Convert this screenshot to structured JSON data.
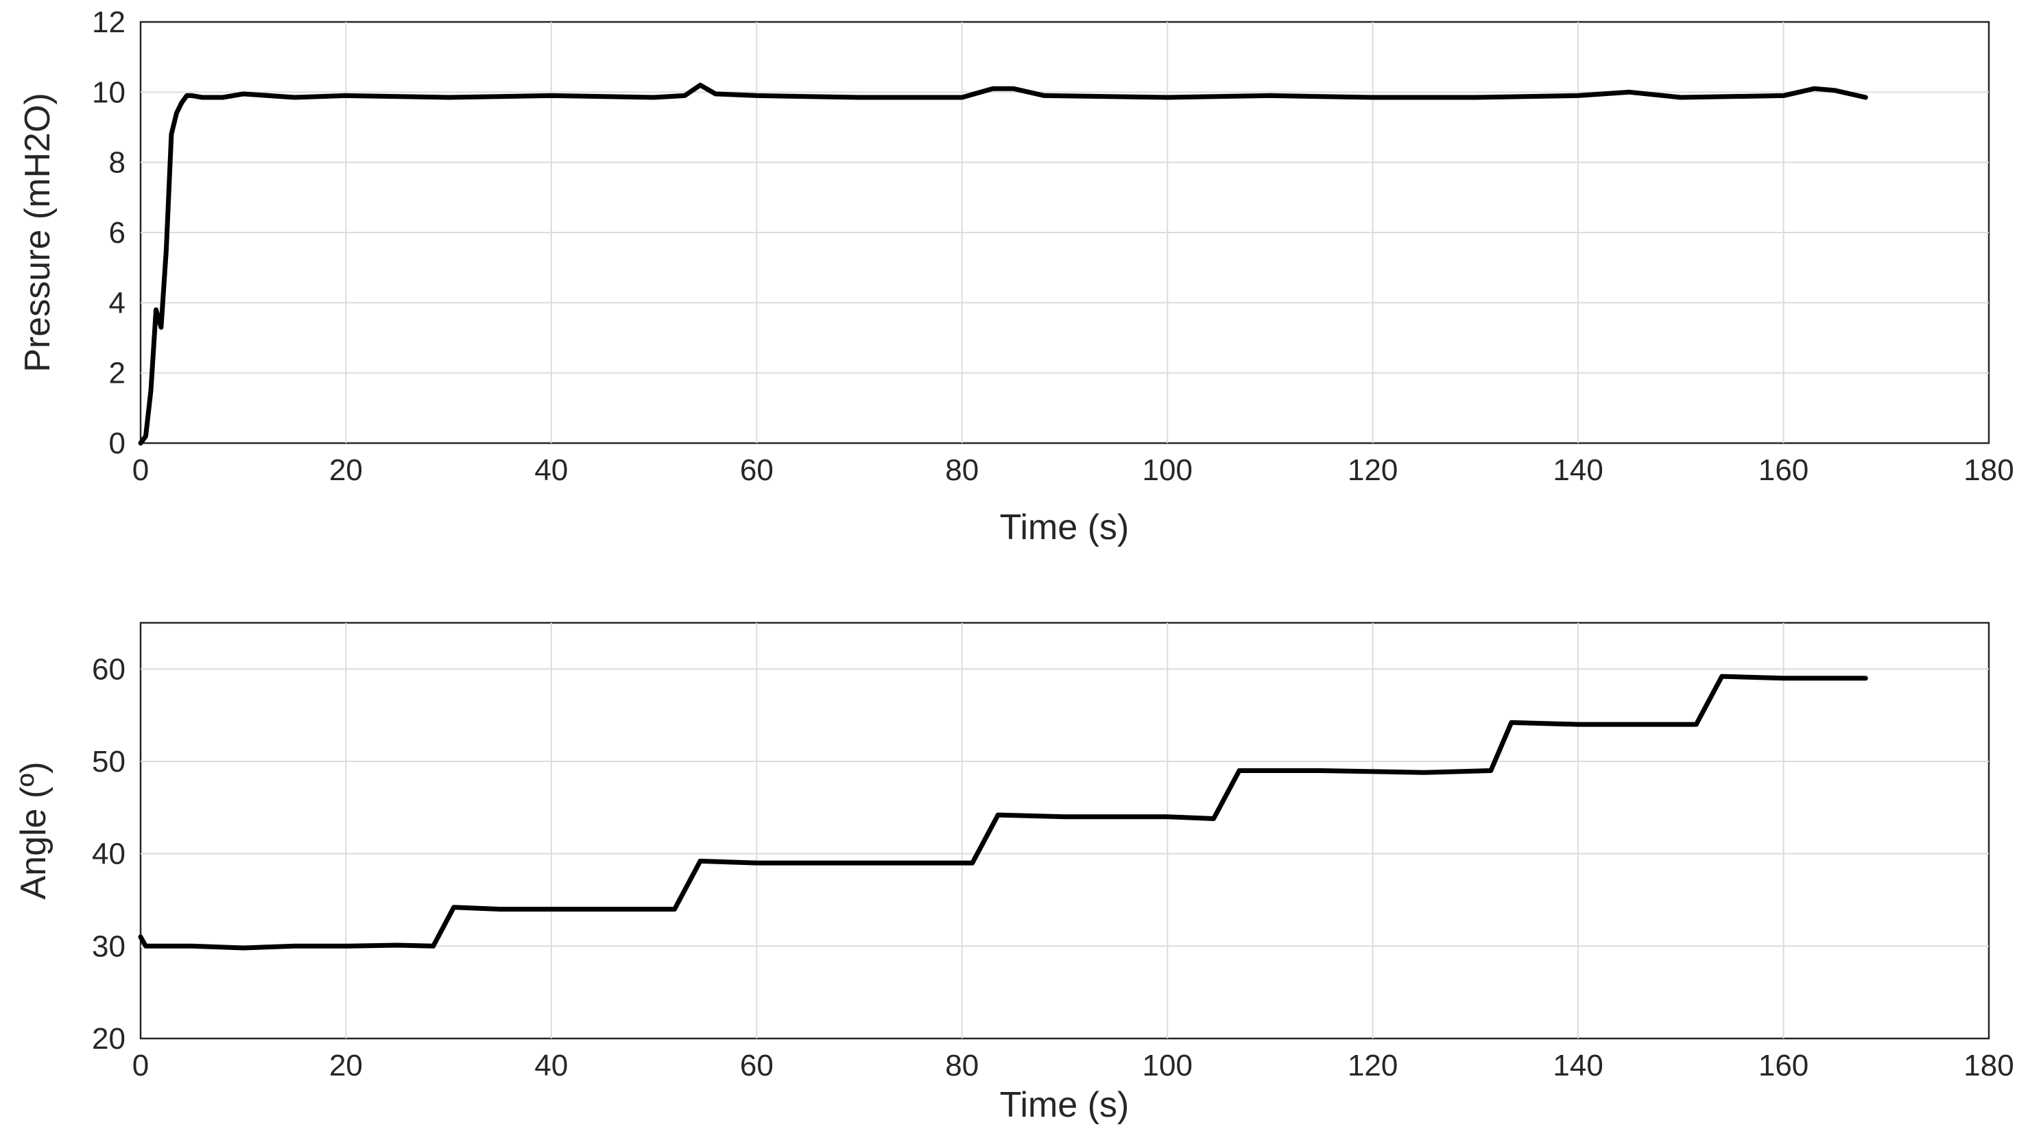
{
  "chart_data": [
    {
      "type": "line",
      "title": "",
      "xlabel": "Time (s)",
      "ylabel": "Pressure (mH2O)",
      "xlim": [
        0,
        180
      ],
      "ylim": [
        0,
        12
      ],
      "x_ticks": [
        "0",
        "20",
        "40",
        "60",
        "80",
        "100",
        "120",
        "140",
        "160",
        "180"
      ],
      "y_ticks": [
        "0",
        "2",
        "4",
        "6",
        "8",
        "10",
        "12"
      ],
      "grid": true,
      "line_color": "#000000",
      "series": [
        {
          "x": [
            0,
            0.5,
            1,
            1.5,
            2,
            2.5,
            3,
            3.5,
            4,
            4.5,
            5,
            6,
            8,
            10,
            15,
            20,
            30,
            40,
            50,
            53,
            54.5,
            56,
            60,
            70,
            80,
            83,
            85,
            88,
            100,
            110,
            120,
            130,
            140,
            145,
            150,
            160,
            163,
            165,
            168
          ],
          "y": [
            0,
            0.2,
            1.5,
            3.8,
            3.3,
            5.5,
            8.8,
            9.4,
            9.7,
            9.9,
            9.9,
            9.85,
            9.85,
            9.95,
            9.85,
            9.9,
            9.85,
            9.9,
            9.85,
            9.9,
            10.2,
            9.95,
            9.9,
            9.85,
            9.85,
            10.1,
            10.1,
            9.9,
            9.85,
            9.9,
            9.85,
            9.85,
            9.9,
            10.0,
            9.85,
            9.9,
            10.1,
            10.05,
            9.85
          ]
        }
      ]
    },
    {
      "type": "line",
      "title": "",
      "xlabel": "Time (s)",
      "ylabel": "Angle (º)",
      "xlim": [
        0,
        180
      ],
      "ylim": [
        20,
        65
      ],
      "x_ticks": [
        "0",
        "20",
        "40",
        "60",
        "80",
        "100",
        "120",
        "140",
        "160",
        "180"
      ],
      "y_ticks": [
        "20",
        "30",
        "40",
        "50",
        "60"
      ],
      "grid": true,
      "line_color": "#000000",
      "series": [
        {
          "x": [
            0,
            0.5,
            5,
            10,
            15,
            20,
            25,
            28.5,
            30.5,
            35,
            40,
            45,
            52,
            54.5,
            60,
            70,
            81,
            83.5,
            90,
            100,
            104.5,
            107,
            115,
            125,
            131.5,
            133.5,
            140,
            150,
            151.5,
            154,
            160,
            168
          ],
          "y": [
            31,
            30,
            30,
            29.8,
            30,
            30,
            30.1,
            30,
            34.2,
            34,
            34,
            34,
            34,
            39.2,
            39,
            39,
            39,
            44.2,
            44,
            44,
            43.8,
            49,
            49,
            48.8,
            49,
            54.2,
            54,
            54,
            54,
            59.2,
            59,
            59
          ]
        }
      ]
    }
  ]
}
